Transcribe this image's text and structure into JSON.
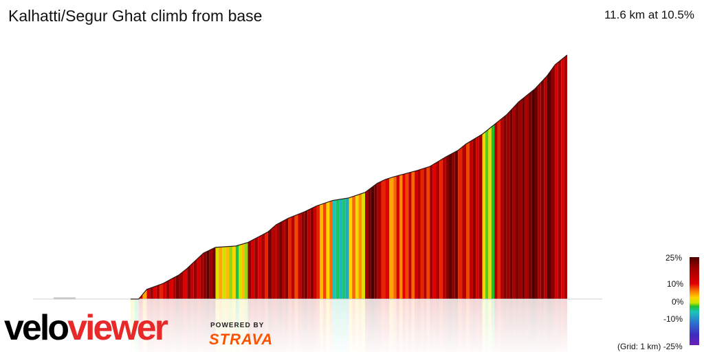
{
  "header": {
    "title": "Kalhatti/Segur Ghat climb from base",
    "summary": "11.6 km at 10.5%"
  },
  "branding": {
    "logo_part1": "velo",
    "logo_part2": "viewer",
    "powered_by": "POWERED BY",
    "partner": "STRAVA"
  },
  "legend": {
    "labels": [
      "25%",
      "10%",
      "0%",
      "-10%",
      "-25%"
    ],
    "grid_note": "(Grid: 1 km)"
  },
  "colors": {
    "gradient_scale": [
      "#6a1fb8",
      "#3c2bbf",
      "#2f6fd0",
      "#19c6b9",
      "#1fbf2f",
      "#c8e600",
      "#ffd400",
      "#ff8c00",
      "#e00000",
      "#9c0000",
      "#4b0000"
    ]
  },
  "chart_data": {
    "type": "area",
    "title": "Kalhatti/Segur Ghat climb from base",
    "xlabel": "",
    "ylabel": "",
    "grid_km": 1,
    "gradient_scale_range_percent": [
      -25,
      25
    ],
    "distance_km": [
      0,
      0.8,
      1.0,
      1.2,
      1.6,
      2.0,
      2.2,
      2.6,
      2.9,
      3.4,
      3.7,
      4.2,
      4.4,
      4.7,
      5.1,
      5.4,
      5.8,
      6.2,
      6.6,
      6.9,
      7.1,
      7.3,
      7.6,
      7.9,
      8.2,
      8.6,
      8.9,
      9.1,
      9.5,
      9.8,
      10.1,
      10.4,
      10.8,
      11.1,
      11.3,
      11.6
    ],
    "elevation_relative": [
      0,
      0,
      0,
      30,
      48,
      75,
      95,
      142,
      160,
      164,
      175,
      208,
      230,
      250,
      270,
      288,
      305,
      313,
      330,
      358,
      370,
      378,
      388,
      398,
      410,
      440,
      460,
      480,
      510,
      540,
      570,
      610,
      650,
      690,
      725,
      755
    ],
    "segment_gradients_percent": [
      0,
      0,
      12,
      15,
      17,
      14,
      18,
      19,
      6,
      3,
      16,
      20,
      18,
      15,
      17,
      10,
      -6,
      8,
      22,
      14,
      12,
      11,
      14,
      13,
      16,
      20,
      14,
      15,
      3,
      16,
      19,
      21,
      18,
      22,
      14,
      -12
    ]
  }
}
